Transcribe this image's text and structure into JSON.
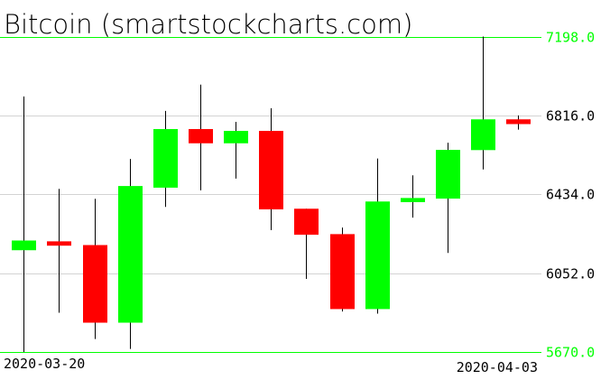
{
  "chart_data": {
    "type": "candlestick",
    "title": "Bitcoin (smartstockcharts.com)",
    "xlabel": "",
    "ylabel": "",
    "ylim": [
      5670.0,
      7198.0
    ],
    "y_ticks": [
      "7198.0",
      "6816.0",
      "6434.0",
      "6052.0",
      "5670.0"
    ],
    "x_tick_labels": [
      "2020-03-20",
      "2020-04-03"
    ],
    "grid": true,
    "colors": {
      "up": "#00ff00",
      "down": "#ff0000",
      "wick": "#000000",
      "grid": "#d3d3d3",
      "bound": "#00ff00"
    },
    "candles": [
      {
        "date": "2020-03-20",
        "open": 6163,
        "high": 6908,
        "low": 5670,
        "close": 6210
      },
      {
        "date": "2020-03-21",
        "open": 6206,
        "high": 6460,
        "low": 5860,
        "close": 6185
      },
      {
        "date": "2020-03-22",
        "open": 6188,
        "high": 6412,
        "low": 5733,
        "close": 5812
      },
      {
        "date": "2020-03-23",
        "open": 5812,
        "high": 6605,
        "low": 5685,
        "close": 6474
      },
      {
        "date": "2020-03-24",
        "open": 6466,
        "high": 6838,
        "low": 6373,
        "close": 6750
      },
      {
        "date": "2020-03-25",
        "open": 6750,
        "high": 6965,
        "low": 6453,
        "close": 6681
      },
      {
        "date": "2020-03-26",
        "open": 6681,
        "high": 6785,
        "low": 6510,
        "close": 6741
      },
      {
        "date": "2020-03-27",
        "open": 6741,
        "high": 6851,
        "low": 6260,
        "close": 6361
      },
      {
        "date": "2020-03-28",
        "open": 6364,
        "high": 6364,
        "low": 6024,
        "close": 6238
      },
      {
        "date": "2020-03-29",
        "open": 6241,
        "high": 6273,
        "low": 5866,
        "close": 5878
      },
      {
        "date": "2020-03-30",
        "open": 5878,
        "high": 6607,
        "low": 5856,
        "close": 6399
      },
      {
        "date": "2020-03-31",
        "open": 6396,
        "high": 6526,
        "low": 6321,
        "close": 6416
      },
      {
        "date": "2020-04-01",
        "open": 6413,
        "high": 6684,
        "low": 6150,
        "close": 6649
      },
      {
        "date": "2020-04-02",
        "open": 6648,
        "high": 7198,
        "low": 6554,
        "close": 6797
      },
      {
        "date": "2020-04-03",
        "open": 6797,
        "high": 6816,
        "low": 6747,
        "close": 6774
      }
    ]
  }
}
